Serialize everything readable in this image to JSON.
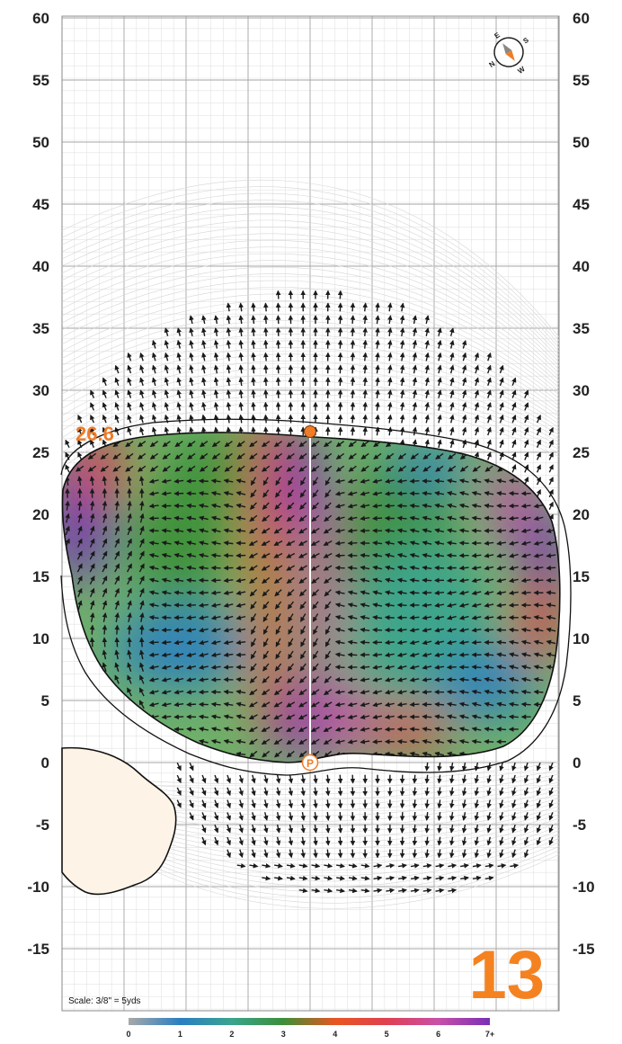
{
  "hole": {
    "number": "13"
  },
  "y_axis": {
    "ticks": [
      "60",
      "55",
      "50",
      "45",
      "40",
      "35",
      "30",
      "25",
      "20",
      "15",
      "10",
      "5",
      "0",
      "-5",
      "-10",
      "-15"
    ]
  },
  "depth": {
    "label": "26.6",
    "value": 26.6
  },
  "pin": {
    "icon": "pin-marker-icon",
    "glyph": "P"
  },
  "compass": {
    "icon": "compass-icon",
    "letters": [
      "E",
      "S",
      "W",
      "N"
    ]
  },
  "scale": {
    "text": "Scale: 3/8\" = 5yds"
  },
  "slope_legend": {
    "labels": [
      "0",
      "1",
      "2",
      "3",
      "4",
      "5",
      "6",
      "7+"
    ],
    "colors": [
      "#a8a8a8",
      "#2a7fc2",
      "#3aa48e",
      "#3c8f38",
      "#e85520",
      "#e04050",
      "#c850a8",
      "#7a2fb5"
    ]
  },
  "colors": {
    "accent": "#f58220",
    "bunker": "#fdf3e6",
    "arrow": "#1a1a1a"
  }
}
